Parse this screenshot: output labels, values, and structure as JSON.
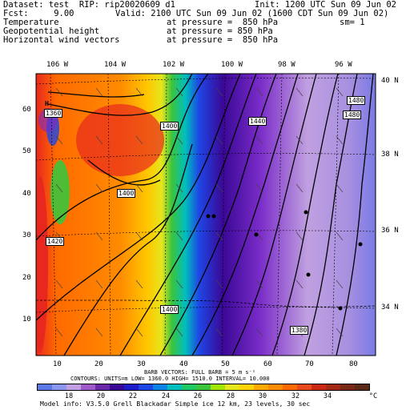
{
  "header": {
    "dataset": "Dataset: test  RIP: rip20020609 d1",
    "init": "Init: 1200 UTC Sun 09 Jun 02",
    "fcst": "Fcst:     9.00",
    "valid": "Valid: 2100 UTC Sun 09 Jun 02 (1600 CDT Sun 09 Jun 02)",
    "fields": [
      {
        "name": "Temperature",
        "level": "at pressure =  850 hPa",
        "extra": "sm= 1"
      },
      {
        "name": "Geopotential height",
        "level": "at pressure = 850 hPa",
        "extra": ""
      },
      {
        "name": "Horizontal wind vectors",
        "level": "at pressure =  850 hPa",
        "extra": ""
      }
    ]
  },
  "map": {
    "lon_labels": [
      "106 W",
      "104 W",
      "102 W",
      "100 W",
      "98 W",
      "96 W"
    ],
    "lat_labels": [
      "40 N",
      "38 N",
      "36 N",
      "34 N"
    ],
    "x_ticks": [
      "10",
      "20",
      "30",
      "40",
      "50",
      "60",
      "70",
      "80"
    ],
    "y_ticks": [
      "10",
      "20",
      "30",
      "40",
      "50",
      "60"
    ],
    "contour_labels": [
      "1400",
      "1400",
      "1440",
      "1400",
      "1380",
      "1420",
      "1400",
      "1480",
      "1480",
      "1360"
    ],
    "low_marker": "H",
    "colors": {
      "hot": "#e8281e",
      "warm": "#ff8c00",
      "mid": "#3cc43c",
      "cool": "#1e46e6",
      "cold": "#7a2cc8"
    }
  },
  "footer": {
    "barb_line": "BARB VECTORS:  FULL BARB = 5 m s⁻¹",
    "contour_line": "CONTOURS:  UNITS=m    LOW=  1360.0        HIGH=  1510.0        INTERVAL=   10.000",
    "colorbar_ticks": [
      "18",
      "20",
      "22",
      "24",
      "26",
      "28",
      "30",
      "32",
      "34",
      "°C"
    ],
    "colorbar_colors": [
      "#5a78e6",
      "#8a96f0",
      "#c0a0e0",
      "#a05ac8",
      "#6a28a8",
      "#3a0896",
      "#1e1ec8",
      "#1e46e6",
      "#0a82e6",
      "#00bebe",
      "#1ec864",
      "#3cc43c",
      "#a0e600",
      "#e6e61e",
      "#ffd200",
      "#ffaa00",
      "#ff8c00",
      "#ff6a00",
      "#e84a1e",
      "#c82814",
      "#a02814",
      "#782814",
      "#5a2814"
    ],
    "model_info": "Model info: V3.5.0  Grell     Blackadar  Simple ice    12 km,  23 levels,   30 sec"
  }
}
